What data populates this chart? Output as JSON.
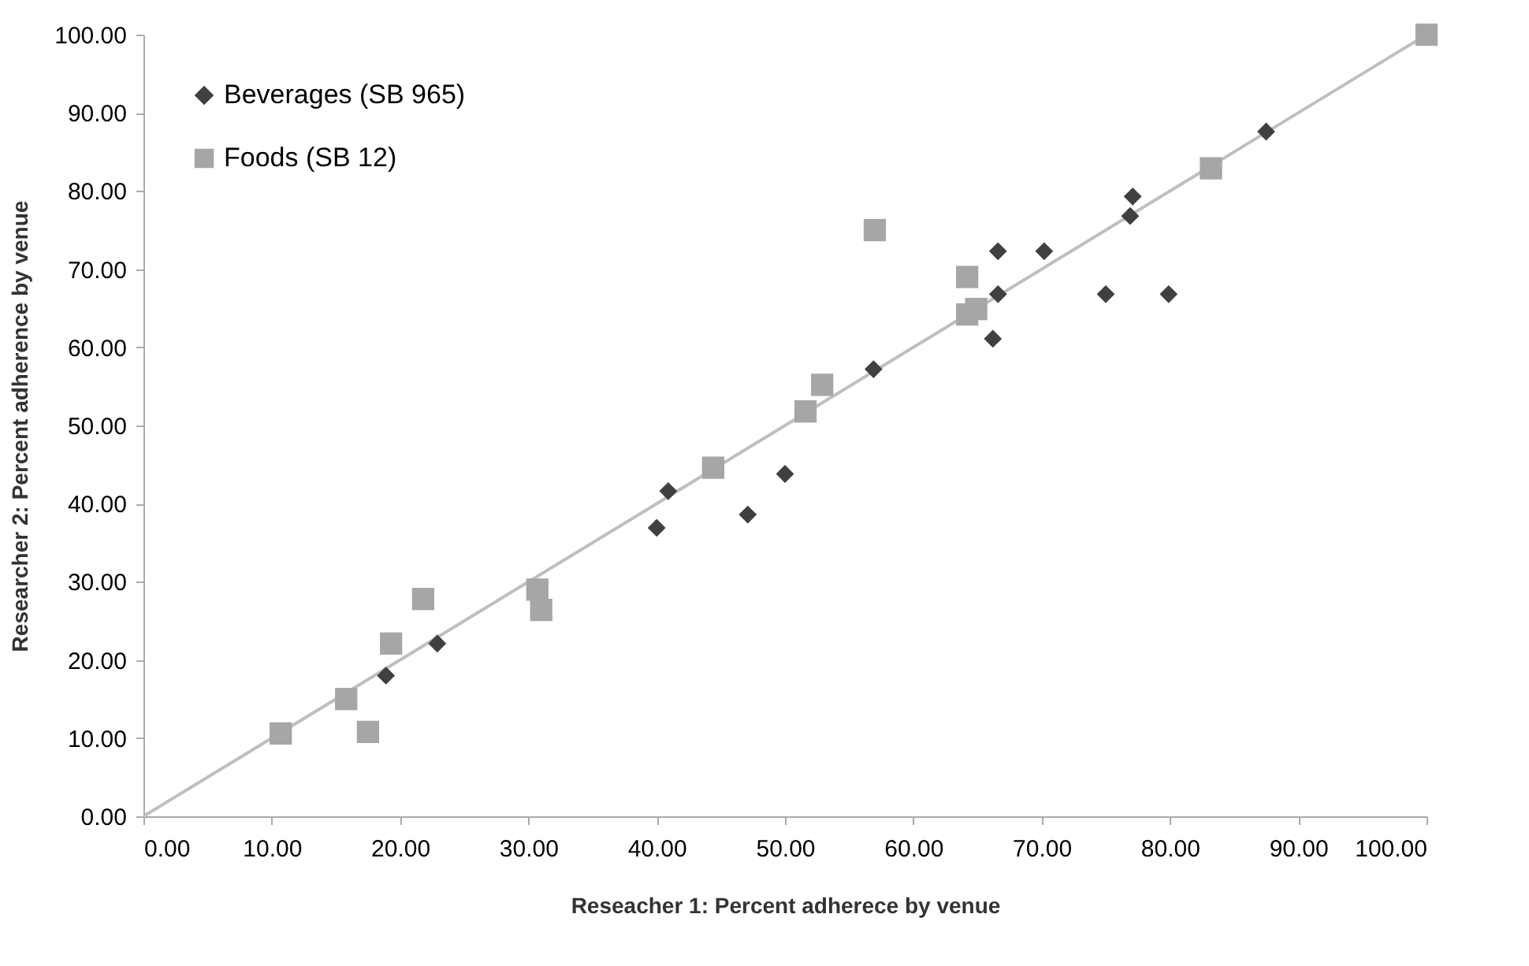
{
  "chart_data": {
    "type": "scatter",
    "xlabel": "Reseacher 1: Percent adherece by venue",
    "ylabel": "Researcher 2: Percent adherence by venue",
    "xlim": [
      0,
      100
    ],
    "ylim": [
      0,
      100
    ],
    "xticks": [
      {
        "value": 0,
        "label": "0.00"
      },
      {
        "value": 10,
        "label": "10.00"
      },
      {
        "value": 20,
        "label": "20.00"
      },
      {
        "value": 30,
        "label": "30.00"
      },
      {
        "value": 40,
        "label": "40.00"
      },
      {
        "value": 50,
        "label": "50.00"
      },
      {
        "value": 60,
        "label": "60.00"
      },
      {
        "value": 70,
        "label": "70.00"
      },
      {
        "value": 80,
        "label": "80.00"
      },
      {
        "value": 90,
        "label": "90.00"
      },
      {
        "value": 100,
        "label": "100.00"
      }
    ],
    "yticks": [
      {
        "value": 0,
        "label": "0.00"
      },
      {
        "value": 10,
        "label": "10.00"
      },
      {
        "value": 20,
        "label": "20.00"
      },
      {
        "value": 30,
        "label": "30.00"
      },
      {
        "value": 40,
        "label": "40.00"
      },
      {
        "value": 50,
        "label": "50.00"
      },
      {
        "value": 60,
        "label": "60.00"
      },
      {
        "value": 70,
        "label": "70.00"
      },
      {
        "value": 80,
        "label": "80.00"
      },
      {
        "value": 90,
        "label": "90.00"
      },
      {
        "value": 100,
        "label": "100.00"
      }
    ],
    "legend": "top left",
    "series": [
      {
        "name": "Beverages (SB 965)",
        "color": "#404040",
        "marker": "diamond",
        "x": [
          18.9,
          22.9,
          40.0,
          40.9,
          47.1,
          50.0,
          56.9,
          66.6,
          66.6,
          66.2,
          70.2,
          77.1,
          76.9,
          75.0,
          79.9,
          87.5
        ],
        "values": [
          18.0,
          22.1,
          36.9,
          41.6,
          38.6,
          43.8,
          57.2,
          72.3,
          66.8,
          61.1,
          72.3,
          79.3,
          76.8,
          66.8,
          66.8,
          87.6
        ]
      },
      {
        "name": "Foods (SB 12)",
        "color": "#a6a6a6",
        "marker": "square",
        "x": [
          10.7,
          15.8,
          17.5,
          19.3,
          21.8,
          30.7,
          31.0,
          44.4,
          51.6,
          52.9,
          57.0,
          64.2,
          64.2,
          64.9,
          83.2,
          100
        ],
        "values": [
          10.6,
          15.0,
          10.8,
          22.1,
          27.8,
          29.0,
          26.4,
          44.6,
          51.8,
          55.2,
          75.0,
          69.0,
          64.2,
          64.9,
          82.9,
          100
        ]
      },
      {
        "type": "line",
        "color": "#bfbfbf",
        "x": [
          0,
          100
        ],
        "values": [
          0,
          100
        ]
      }
    ]
  }
}
